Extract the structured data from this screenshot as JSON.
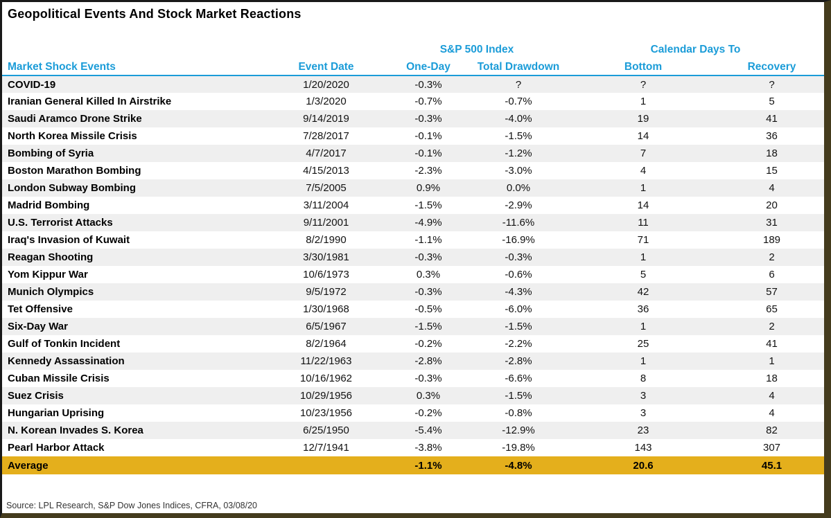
{
  "title": "Geopolitical Events And Stock Market Reactions",
  "source": "Source: LPL Research, S&P Dow Jones Indices, CFRA, 03/08/20",
  "colors": {
    "header_blue": "#1B9CD8",
    "average_gold": "#E4AF1C",
    "row_stripe": "#EFEFEF"
  },
  "chart_data": {
    "type": "table",
    "group_headers": [
      {
        "label": "S&P 500 Index",
        "spans": [
          "One-Day",
          "Total Drawdown"
        ]
      },
      {
        "label": "Calendar Days To",
        "spans": [
          "Bottom",
          "Recovery"
        ]
      }
    ],
    "columns": [
      "Market Shock Events",
      "Event Date",
      "One-Day",
      "Total Drawdown",
      "Bottom",
      "Recovery"
    ],
    "rows": [
      {
        "event": "COVID-19",
        "date": "1/20/2020",
        "one_day": "-0.3%",
        "total_drawdown": "?",
        "bottom": "?",
        "recovery": "?"
      },
      {
        "event": "Iranian General Killed In Airstrike",
        "date": "1/3/2020",
        "one_day": "-0.7%",
        "total_drawdown": "-0.7%",
        "bottom": "1",
        "recovery": "5"
      },
      {
        "event": "Saudi Aramco Drone Strike",
        "date": "9/14/2019",
        "one_day": "-0.3%",
        "total_drawdown": "-4.0%",
        "bottom": "19",
        "recovery": "41"
      },
      {
        "event": "North Korea Missile Crisis",
        "date": "7/28/2017",
        "one_day": "-0.1%",
        "total_drawdown": "-1.5%",
        "bottom": "14",
        "recovery": "36"
      },
      {
        "event": "Bombing of Syria",
        "date": "4/7/2017",
        "one_day": "-0.1%",
        "total_drawdown": "-1.2%",
        "bottom": "7",
        "recovery": "18"
      },
      {
        "event": "Boston Marathon Bombing",
        "date": "4/15/2013",
        "one_day": "-2.3%",
        "total_drawdown": "-3.0%",
        "bottom": "4",
        "recovery": "15"
      },
      {
        "event": "London Subway Bombing",
        "date": "7/5/2005",
        "one_day": "0.9%",
        "total_drawdown": "0.0%",
        "bottom": "1",
        "recovery": "4"
      },
      {
        "event": "Madrid Bombing",
        "date": "3/11/2004",
        "one_day": "-1.5%",
        "total_drawdown": "-2.9%",
        "bottom": "14",
        "recovery": "20"
      },
      {
        "event": "U.S. Terrorist Attacks",
        "date": "9/11/2001",
        "one_day": "-4.9%",
        "total_drawdown": "-11.6%",
        "bottom": "11",
        "recovery": "31"
      },
      {
        "event": "Iraq's Invasion of Kuwait",
        "date": "8/2/1990",
        "one_day": "-1.1%",
        "total_drawdown": "-16.9%",
        "bottom": "71",
        "recovery": "189"
      },
      {
        "event": "Reagan Shooting",
        "date": "3/30/1981",
        "one_day": "-0.3%",
        "total_drawdown": "-0.3%",
        "bottom": "1",
        "recovery": "2"
      },
      {
        "event": "Yom Kippur War",
        "date": "10/6/1973",
        "one_day": "0.3%",
        "total_drawdown": "-0.6%",
        "bottom": "5",
        "recovery": "6"
      },
      {
        "event": "Munich Olympics",
        "date": "9/5/1972",
        "one_day": "-0.3%",
        "total_drawdown": "-4.3%",
        "bottom": "42",
        "recovery": "57"
      },
      {
        "event": "Tet Offensive",
        "date": "1/30/1968",
        "one_day": "-0.5%",
        "total_drawdown": "-6.0%",
        "bottom": "36",
        "recovery": "65"
      },
      {
        "event": "Six-Day War",
        "date": "6/5/1967",
        "one_day": "-1.5%",
        "total_drawdown": "-1.5%",
        "bottom": "1",
        "recovery": "2"
      },
      {
        "event": "Gulf of Tonkin Incident",
        "date": "8/2/1964",
        "one_day": "-0.2%",
        "total_drawdown": "-2.2%",
        "bottom": "25",
        "recovery": "41"
      },
      {
        "event": "Kennedy Assassination",
        "date": "11/22/1963",
        "one_day": "-2.8%",
        "total_drawdown": "-2.8%",
        "bottom": "1",
        "recovery": "1"
      },
      {
        "event": "Cuban Missile Crisis",
        "date": "10/16/1962",
        "one_day": "-0.3%",
        "total_drawdown": "-6.6%",
        "bottom": "8",
        "recovery": "18"
      },
      {
        "event": "Suez Crisis",
        "date": "10/29/1956",
        "one_day": "0.3%",
        "total_drawdown": "-1.5%",
        "bottom": "3",
        "recovery": "4"
      },
      {
        "event": "Hungarian Uprising",
        "date": "10/23/1956",
        "one_day": "-0.2%",
        "total_drawdown": "-0.8%",
        "bottom": "3",
        "recovery": "4"
      },
      {
        "event": "N. Korean Invades S. Korea",
        "date": "6/25/1950",
        "one_day": "-5.4%",
        "total_drawdown": "-12.9%",
        "bottom": "23",
        "recovery": "82"
      },
      {
        "event": "Pearl Harbor Attack",
        "date": "12/7/1941",
        "one_day": "-3.8%",
        "total_drawdown": "-19.8%",
        "bottom": "143",
        "recovery": "307"
      }
    ],
    "average": {
      "label": "Average",
      "date": "",
      "one_day": "-1.1%",
      "total_drawdown": "-4.8%",
      "bottom": "20.6",
      "recovery": "45.1"
    }
  }
}
